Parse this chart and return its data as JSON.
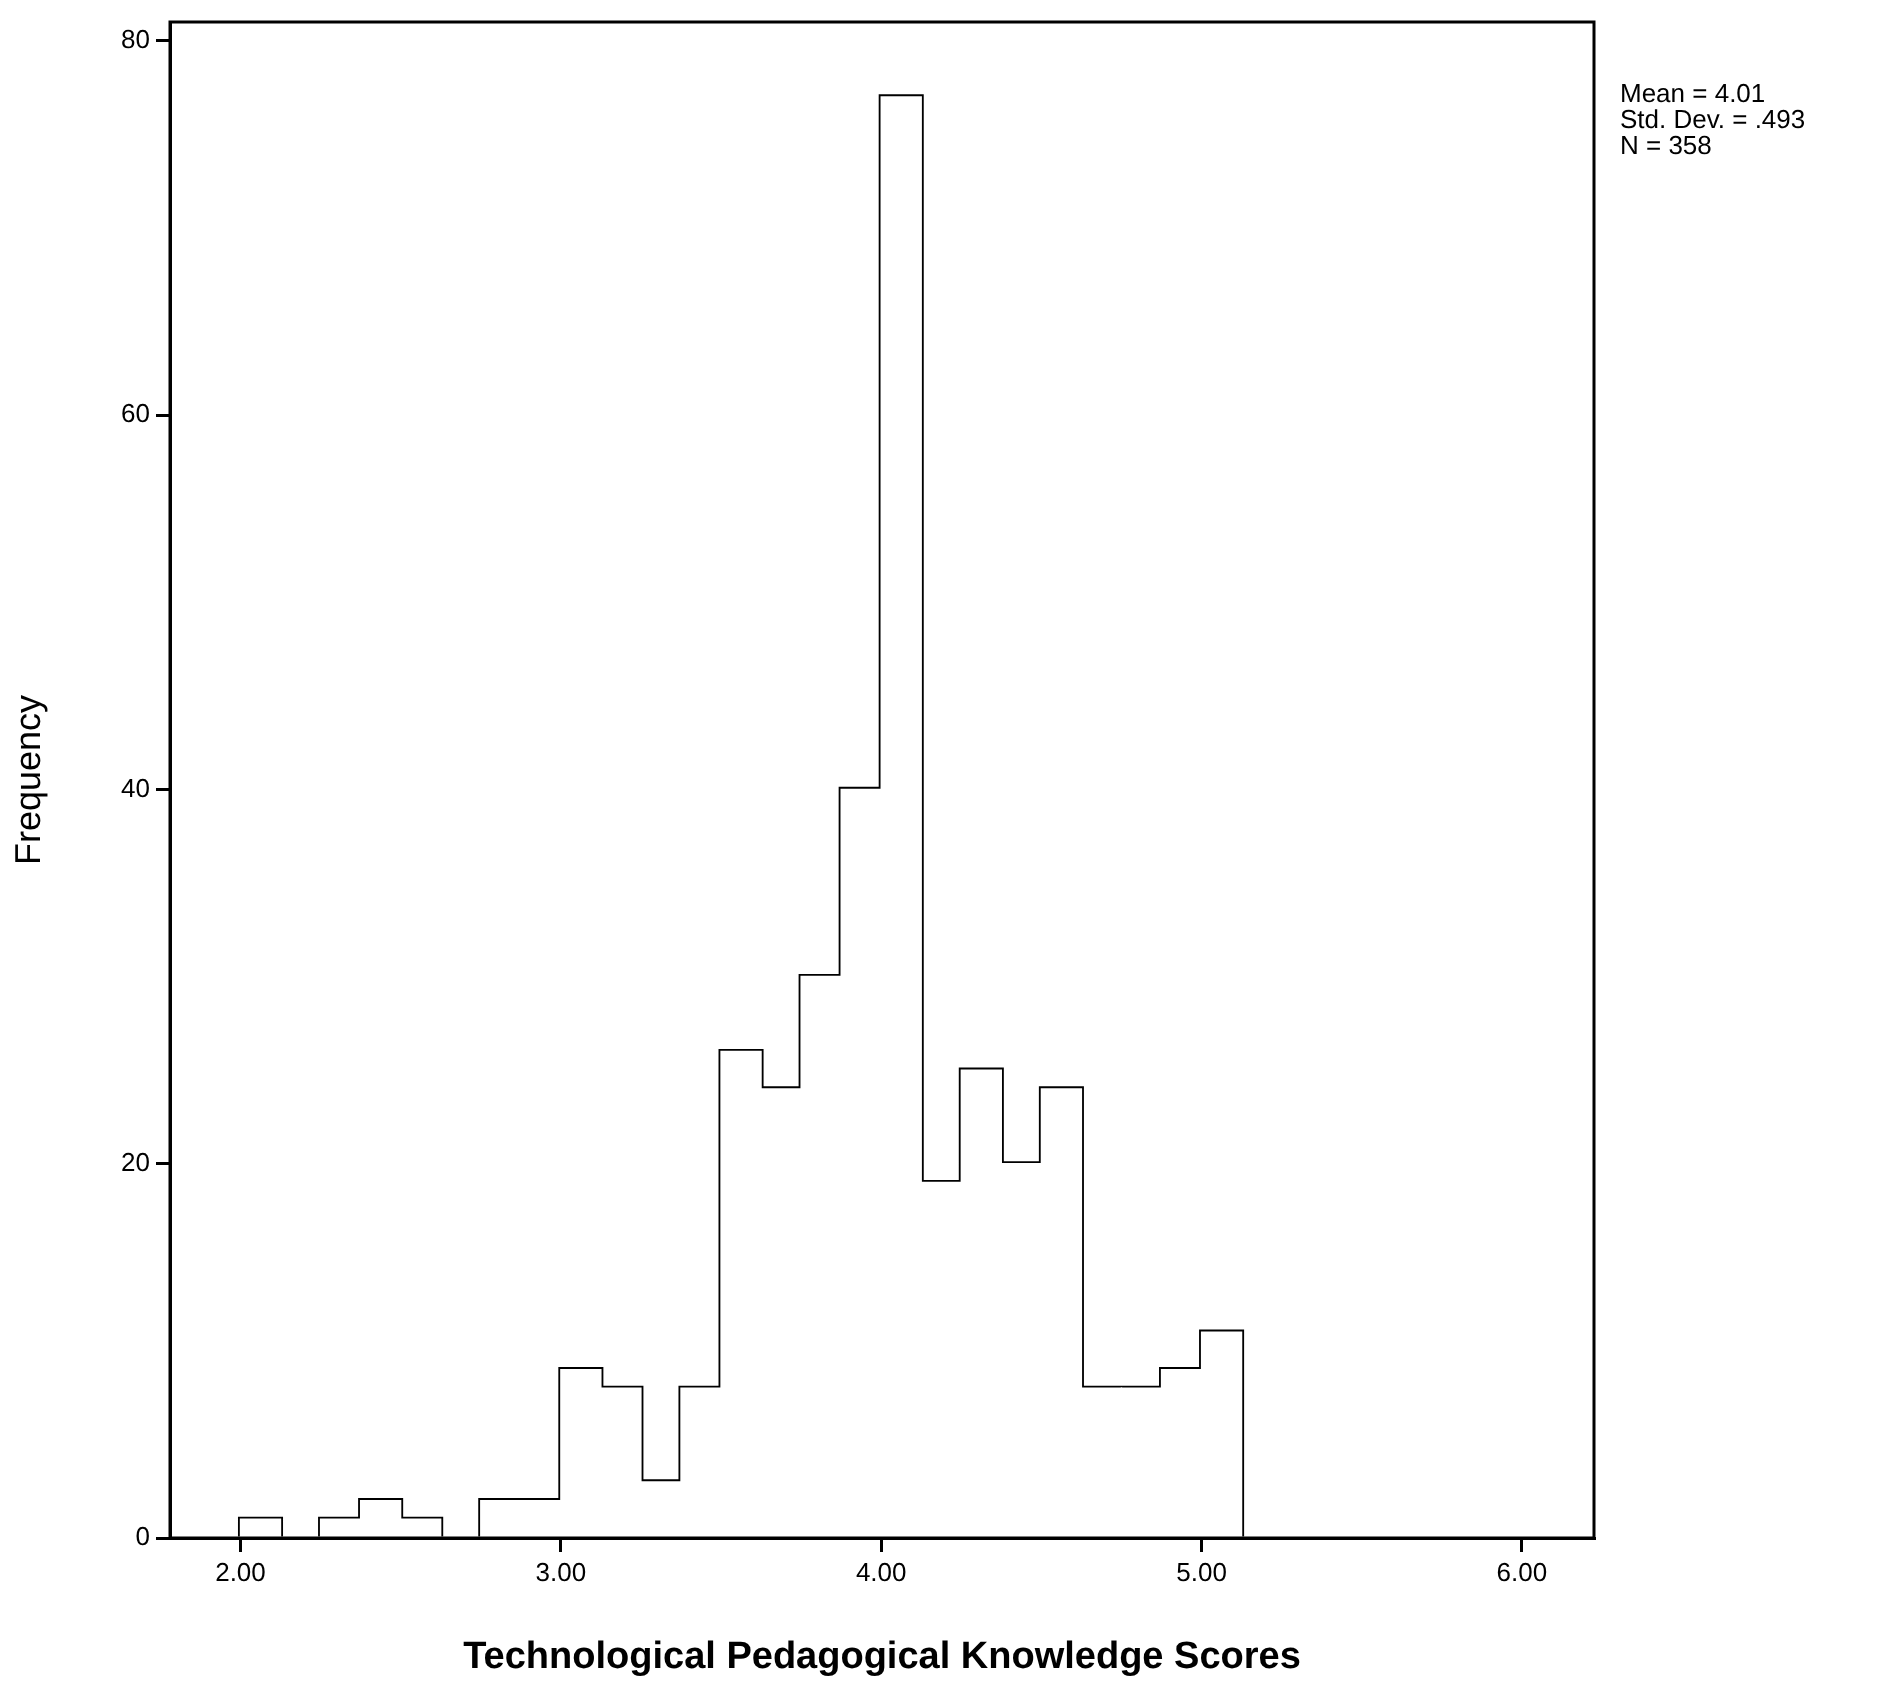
{
  "chart_data": {
    "type": "histogram",
    "xlabel": "Technological Pedagogical Knowledge Scores",
    "ylabel": "Frequency",
    "bins": [
      2.0,
      2.125,
      2.25,
      2.375,
      2.5,
      2.625,
      2.75,
      2.875,
      3.0,
      3.125,
      3.25,
      3.375,
      3.5,
      3.625,
      3.75,
      3.875,
      4.0,
      4.125,
      4.25,
      4.375,
      4.5,
      4.625,
      4.75,
      4.875,
      5.0,
      5.125
    ],
    "values": [
      1,
      0,
      1,
      2,
      1,
      0,
      2,
      2,
      9,
      8,
      3,
      8,
      26,
      24,
      30,
      40,
      77,
      19,
      25,
      20,
      24,
      8,
      8,
      9,
      11
    ],
    "color": "#ffffff",
    "xlim": [
      1.78,
      6.225
    ],
    "xticks": [
      {
        "value": 2,
        "label": "2.00"
      },
      {
        "value": 3,
        "label": "3.00"
      },
      {
        "value": 4,
        "label": "4.00"
      },
      {
        "value": 5,
        "label": "5.00"
      },
      {
        "value": 6,
        "label": "6.00"
      }
    ],
    "ylim": [
      0,
      81
    ],
    "yticks": [
      0,
      20,
      40,
      60,
      80
    ],
    "grid": false,
    "legend": false,
    "annotations": [
      "Mean = 4.01",
      "Std. Dev. = .493",
      "N = 358"
    ]
  }
}
